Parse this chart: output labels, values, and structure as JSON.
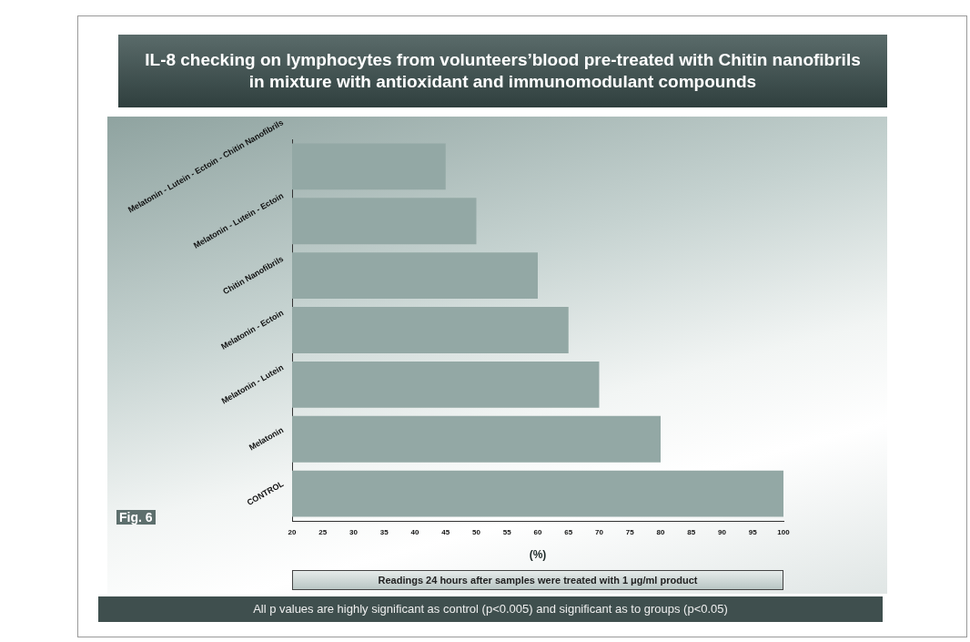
{
  "chart_data": {
    "type": "bar",
    "orientation": "horizontal",
    "title": "IL-8 checking on lymphocytes from volunteers’blood pre-treated with Chitin nanofibrils in mixture with antioxidant and immunomodulant compounds",
    "categories": [
      "Melatonin - Lutein - Ectoin - Chitin Nanofibrils",
      "Melatonin - Lutein - Ectoin",
      "Chitin Nanofibrils",
      "Melatonin - Ectoin",
      "Melatonin - Lutein",
      "Melatonin",
      "CONTROL"
    ],
    "values": [
      45,
      50,
      60,
      65,
      70,
      80,
      100
    ],
    "color": "#93a8a5",
    "xlim": [
      20,
      100
    ],
    "xticks": [
      20,
      25,
      30,
      35,
      40,
      45,
      50,
      55,
      60,
      65,
      70,
      75,
      80,
      85,
      90,
      95,
      100
    ],
    "xlabel": "(%)",
    "grid": false,
    "annotations": [
      "Fig. 6",
      "Readings 24 hours after samples were treated with 1 μg/ml product",
      "All p values are highly significant as control (p<0.005) and significant as to groups (p<0.05)"
    ]
  }
}
